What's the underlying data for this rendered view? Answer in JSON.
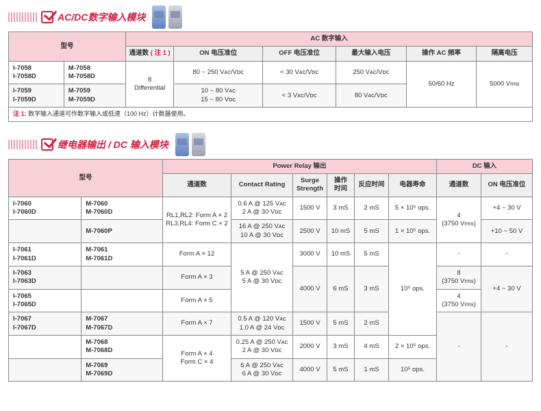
{
  "section1": {
    "title": "AC/DC数字输入模块",
    "top_header": "AC 数字输入",
    "col_model": "型号",
    "cols": {
      "ch": "通道数",
      "ch_note": "( 注 1 )",
      "on": "ON 电压准位",
      "off": "OFF 电压准位",
      "max": "最大输入电压",
      "acfreq": "操作 AC 频率",
      "iso": "隔离电压"
    },
    "row1": {
      "models_a": "I-7058\nI-7058D",
      "models_b": "M-7058\nM-7058D",
      "ch": "8\nDifferential",
      "on": "80 ~ 250 Vᴀᴄ/Vᴅᴄ",
      "off": "< 30 Vᴀᴄ/Vᴅᴄ",
      "max": "250 Vᴀᴄ/Vᴅᴄ",
      "acfreq": "50/60 Hz",
      "iso": "5000 Vrms"
    },
    "row2": {
      "models_a": "I-7059\nI-7059D",
      "models_b": "M-7059\nM-7059D",
      "on": "10 ~ 80 Vᴀᴄ\n15 ~ 80 Vᴅᴄ",
      "off": "< 3 Vᴀᴄ/Vᴅᴄ",
      "max": "80 Vᴀᴄ/Vᴅᴄ"
    },
    "note": {
      "label": "注 1: ",
      "text": "数字输入通道可作数字输入或低速（100 Hz）计数器使用。"
    }
  },
  "section2": {
    "title": "继电器输出 / DC 输入模块",
    "power_relay_hdr": "Power Relay 输出",
    "dc_input_hdr": "DC 输入",
    "col_model": "型号",
    "cols": {
      "ch": "通道数",
      "contact": "Contact Rating",
      "surge": "Surge\nStrength",
      "optime": "操作\n时间",
      "react": "反应时间",
      "life": "电器寿命",
      "dc_ch": "通道数",
      "dc_on": "ON 电压准位"
    },
    "r1": {
      "ma": "I-7060\nI-7060D",
      "mb": "M-7060\nM-7060D",
      "ch": "RL1,RL2: Form A × 2\nRL3,RL4: Form C × 2",
      "contact": "0.6 A @ 125 Vᴀᴄ\n2 A @ 30 Vᴅᴄ",
      "surge": "1500 V",
      "op": "3 mS",
      "react": "2 mS",
      "life": "5 × 10⁵ ops.",
      "dc_ch": "4\n(3750 Vrms)",
      "dc_on": "+4 ~ 30 V"
    },
    "r2": {
      "mb": "M-7060P",
      "contact": "16 A @ 250 Vᴀᴄ\n10 A @ 30 Vᴅᴄ",
      "surge": "2500 V",
      "op": "10 mS",
      "react": "5 mS",
      "life": "1 × 10⁵ ops.",
      "dc_on": "+10 ~ 50 V"
    },
    "r3": {
      "ma": "I-7061\nI-7061D",
      "mb": "M-7061\nM-7061D",
      "ch": "Form A × 12",
      "contact": "5 A @ 250 Vᴀᴄ\n5 A @ 30 Vᴅᴄ",
      "surge": "3000 V",
      "op": "10 mS",
      "react": "5 mS",
      "life": "10⁵ ops.",
      "dc_ch": "-",
      "dc_on": "-"
    },
    "r4": {
      "ma": "I-7063\nI-7063D",
      "ch": "Form A × 3",
      "surge": "4000 V",
      "op": "6 mS",
      "react": "3 mS",
      "dc_ch": "8\n(3750 Vrms)",
      "dc_on": "+4 ~ 30 V"
    },
    "r5": {
      "ma": "I-7065\nI-7065D",
      "ch": "Form A × 5",
      "dc_ch": "4\n(3750 Vrms)"
    },
    "r6": {
      "ma": "I-7067\nI-7067D",
      "mb": "M-7067\nM-7067D",
      "ch": "Form A × 7",
      "contact": "0.5 A @ 120 Vᴀᴄ\n1.0 A @ 24 Vᴅᴄ",
      "surge": "1500 V",
      "op": "5 mS",
      "react": "2 mS"
    },
    "r7": {
      "mb": "M-7068\nM-7068D",
      "ch": "Form A × 4\nForm C × 4",
      "contact": "0.25 A @ 250 Vᴀᴄ\n2 A @ 30 Vᴅᴄ",
      "surge": "2000 V",
      "op": "3 mS",
      "react": "4 mS",
      "life": "2 × 10⁵ ops.",
      "dc_ch": "-",
      "dc_on": "-"
    },
    "r8": {
      "mb": "M-7069\nM-7069D",
      "contact": "6 A @ 250 Vᴀᴄ\n6 A @ 30 Vᴅᴄ",
      "surge": "4000 V",
      "op": "5 mS",
      "react": "1 mS",
      "life": "10⁵ ops."
    }
  }
}
